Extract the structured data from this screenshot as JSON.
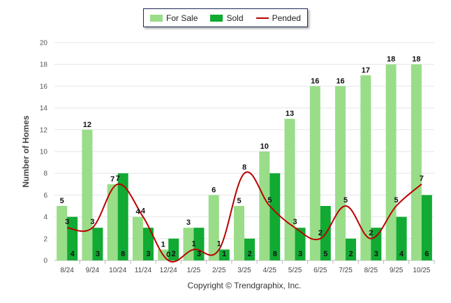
{
  "chart_data": {
    "type": "bar",
    "title": "",
    "xlabel": "",
    "ylabel": "Number of Homes",
    "ylim": [
      0,
      20
    ],
    "yticks": [
      0,
      2,
      4,
      6,
      8,
      10,
      12,
      14,
      16,
      18,
      20
    ],
    "categories": [
      "8/24",
      "9/24",
      "10/24",
      "11/24",
      "12/24",
      "1/25",
      "2/25",
      "3/25",
      "4/25",
      "5/25",
      "6/25",
      "7/25",
      "8/25",
      "9/25",
      "10/25"
    ],
    "series": [
      {
        "name": "For Sale",
        "kind": "bar",
        "color": "#99dd88",
        "values": [
          5,
          12,
          7,
          4,
          1,
          3,
          6,
          5,
          10,
          13,
          16,
          16,
          17,
          18,
          18
        ]
      },
      {
        "name": "Sold",
        "kind": "bar",
        "color": "#11aa33",
        "values": [
          4,
          3,
          8,
          3,
          2,
          3,
          1,
          2,
          8,
          3,
          5,
          2,
          3,
          4,
          6
        ]
      },
      {
        "name": "Pended",
        "kind": "line",
        "color": "#bb0000",
        "values": [
          3,
          3,
          7,
          4,
          0,
          1,
          1,
          8,
          5,
          3,
          2,
          5,
          2,
          5,
          7
        ]
      }
    ],
    "legend_position": "top-center",
    "grid": true
  },
  "legend": {
    "for_sale": "For Sale",
    "sold": "Sold",
    "pended": "Pended"
  },
  "colors": {
    "for_sale": "#99dd88",
    "sold": "#11aa33",
    "pended": "#bb0000"
  },
  "footer": {
    "copyright": "Copyright © Trendgraphix, Inc."
  }
}
